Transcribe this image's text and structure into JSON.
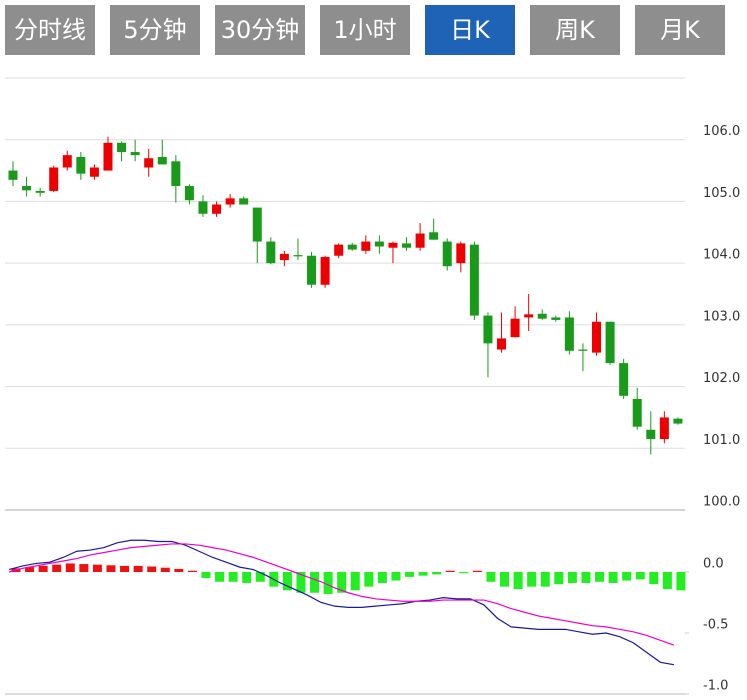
{
  "tabs": [
    {
      "label": "分时线",
      "active": false
    },
    {
      "label": "5分钟",
      "active": false
    },
    {
      "label": "30分钟",
      "active": false
    },
    {
      "label": "1小时",
      "active": false
    },
    {
      "label": "日K",
      "active": true
    },
    {
      "label": "周K",
      "active": false
    },
    {
      "label": "月K",
      "active": false
    }
  ],
  "chart_data": [
    {
      "type": "candlestick",
      "open": [
        105.5,
        105.25,
        105.17,
        105.17,
        105.55,
        105.72,
        105.4,
        105.5,
        105.95,
        105.8,
        105.55,
        105.72,
        105.65,
        105.25,
        105.0,
        104.8,
        104.95,
        105.05,
        104.9,
        104.35,
        104.05,
        104.13,
        104.12,
        103.65,
        104.12,
        104.3,
        104.2,
        104.35,
        104.25,
        104.32,
        104.25,
        104.5,
        104.35,
        104.0,
        104.3,
        103.15,
        102.6,
        102.8,
        103.12,
        103.18,
        103.12,
        103.12,
        102.6,
        102.55,
        103.05,
        102.38,
        101.8,
        101.3,
        101.15,
        101.48
      ],
      "close": [
        105.35,
        105.18,
        105.14,
        105.55,
        105.75,
        105.45,
        105.55,
        105.95,
        105.8,
        105.75,
        105.7,
        105.6,
        105.25,
        105.02,
        104.8,
        104.95,
        105.05,
        104.95,
        104.35,
        104.0,
        104.15,
        104.11,
        103.65,
        104.1,
        104.3,
        104.22,
        104.35,
        104.27,
        104.33,
        104.25,
        104.48,
        104.38,
        103.95,
        104.32,
        103.15,
        102.7,
        102.78,
        103.1,
        103.17,
        103.1,
        103.08,
        102.58,
        102.58,
        103.05,
        102.38,
        101.85,
        101.35,
        101.15,
        101.5,
        101.4
      ],
      "low": [
        105.25,
        105.08,
        105.08,
        105.15,
        105.5,
        105.35,
        105.35,
        105.5,
        105.65,
        105.65,
        105.4,
        105.6,
        104.98,
        104.95,
        104.75,
        104.75,
        104.9,
        104.95,
        104.0,
        103.98,
        103.95,
        104.05,
        103.6,
        103.6,
        104.08,
        104.2,
        104.15,
        104.15,
        104.0,
        104.2,
        104.2,
        104.38,
        103.88,
        103.85,
        103.08,
        102.15,
        102.55,
        102.8,
        102.9,
        103.08,
        103.05,
        102.52,
        102.25,
        102.5,
        102.35,
        101.8,
        101.3,
        100.9,
        101.08,
        101.38
      ],
      "high": [
        105.65,
        105.4,
        105.22,
        105.58,
        105.82,
        105.8,
        105.6,
        106.05,
        105.97,
        106.0,
        105.85,
        106.0,
        105.75,
        105.28,
        105.1,
        105.0,
        105.12,
        105.08,
        104.9,
        104.42,
        104.2,
        104.4,
        104.18,
        104.12,
        104.32,
        104.33,
        104.45,
        104.45,
        104.35,
        104.42,
        104.65,
        104.72,
        104.4,
        104.35,
        104.35,
        103.2,
        103.2,
        103.3,
        103.5,
        103.25,
        103.15,
        103.22,
        102.7,
        103.2,
        103.05,
        102.45,
        101.98,
        101.6,
        101.6,
        101.5
      ],
      "up_color": "#ee0000",
      "down_color": "#1a9a1a",
      "ylim": [
        100,
        107
      ],
      "yticks": [
        {
          "value": 106,
          "label": "106.0"
        },
        {
          "value": 105,
          "label": "105.0"
        },
        {
          "value": 104,
          "label": "104.0"
        },
        {
          "value": 103,
          "label": "103.0"
        },
        {
          "value": 102,
          "label": "102.0"
        },
        {
          "value": 101,
          "label": "101.0"
        },
        {
          "value": 100,
          "label": "100.0"
        }
      ],
      "grid": true
    },
    {
      "type": "macd",
      "histogram": {
        "values": [
          0.03,
          0.04,
          0.05,
          0.06,
          0.07,
          0.065,
          0.06,
          0.055,
          0.05,
          0.05,
          0.045,
          0.035,
          0.025,
          0.01,
          -0.05,
          -0.08,
          -0.08,
          -0.09,
          -0.08,
          -0.12,
          -0.15,
          -0.17,
          -0.17,
          -0.18,
          -0.17,
          -0.15,
          -0.12,
          -0.09,
          -0.07,
          -0.04,
          -0.03,
          -0.02,
          0.01,
          -0.01,
          0.01,
          -0.08,
          -0.12,
          -0.14,
          -0.12,
          -0.12,
          -0.1,
          -0.09,
          -0.09,
          -0.08,
          -0.09,
          -0.07,
          -0.06,
          -0.1,
          -0.14,
          -0.15
        ],
        "up_color": "#ee1111",
        "down_color": "#22ee22"
      },
      "lines": [
        {
          "color": "#1a1a9a",
          "values": [
            0.02,
            0.05,
            0.07,
            0.08,
            0.12,
            0.17,
            0.18,
            0.2,
            0.24,
            0.26,
            0.26,
            0.25,
            0.25,
            0.22,
            0.17,
            0.12,
            0.08,
            0.04,
            0.02,
            -0.03,
            -0.09,
            -0.14,
            -0.19,
            -0.25,
            -0.28,
            -0.29,
            -0.29,
            -0.28,
            -0.27,
            -0.26,
            -0.24,
            -0.23,
            -0.21,
            -0.22,
            -0.22,
            -0.27,
            -0.38,
            -0.45,
            -0.46,
            -0.47,
            -0.47,
            -0.47,
            -0.49,
            -0.51,
            -0.5,
            -0.53,
            -0.58,
            -0.66,
            -0.74,
            -0.76
          ]
        },
        {
          "color": "#ee00cc",
          "values": [
            0.0,
            0.03,
            0.05,
            0.07,
            0.09,
            0.11,
            0.14,
            0.16,
            0.18,
            0.2,
            0.21,
            0.22,
            0.23,
            0.23,
            0.22,
            0.2,
            0.18,
            0.15,
            0.12,
            0.08,
            0.04,
            0.0,
            -0.04,
            -0.08,
            -0.13,
            -0.17,
            -0.2,
            -0.22,
            -0.23,
            -0.24,
            -0.24,
            -0.24,
            -0.23,
            -0.23,
            -0.23,
            -0.23,
            -0.26,
            -0.3,
            -0.33,
            -0.36,
            -0.38,
            -0.4,
            -0.42,
            -0.44,
            -0.45,
            -0.47,
            -0.49,
            -0.52,
            -0.56,
            -0.6
          ]
        }
      ],
      "ylim": [
        -1,
        0.5
      ],
      "yticks": [
        {
          "value": 0,
          "label": "0.0"
        },
        {
          "value": -0.5,
          "label": "-0.5"
        },
        {
          "value": -1,
          "label": "-1.0"
        }
      ]
    }
  ]
}
